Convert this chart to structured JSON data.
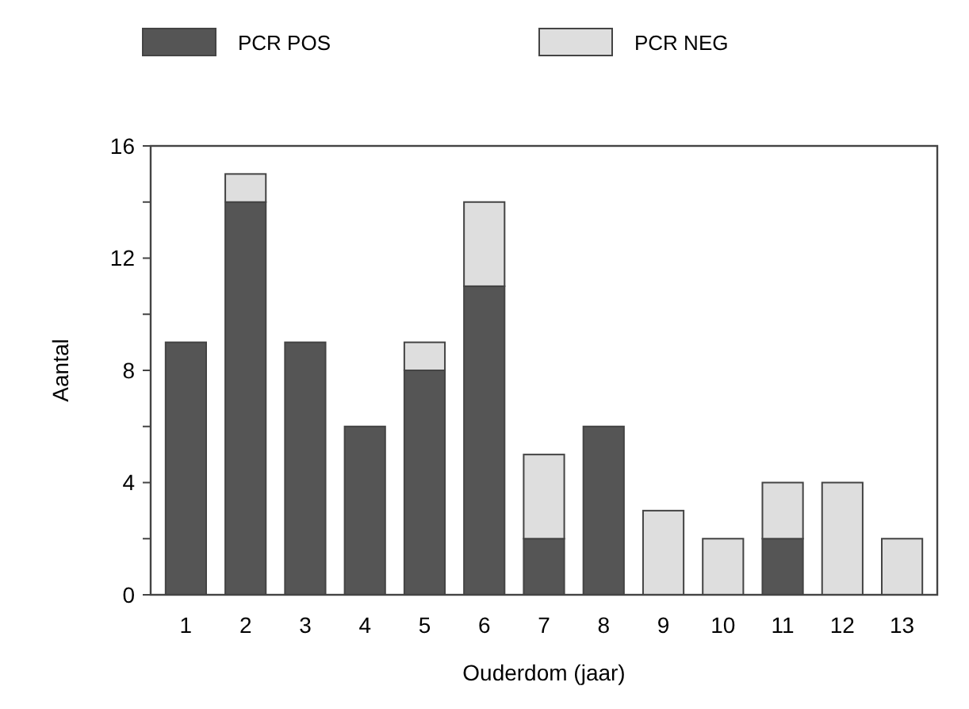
{
  "chart_data": {
    "type": "bar",
    "stacked": true,
    "xlabel": "Ouderdom (jaar)",
    "ylabel": "Aantal",
    "categories": [
      "1",
      "2",
      "3",
      "4",
      "5",
      "6",
      "7",
      "8",
      "9",
      "10",
      "11",
      "12",
      "13"
    ],
    "series": [
      {
        "name": "PCR POS",
        "color": "#555555",
        "values": [
          9,
          14,
          9,
          6,
          8,
          11,
          2,
          6,
          0,
          0,
          2,
          0,
          0
        ]
      },
      {
        "name": "PCR NEG",
        "color": "#dedede",
        "values": [
          0,
          1,
          0,
          0,
          1,
          3,
          3,
          0,
          3,
          2,
          2,
          4,
          2
        ]
      }
    ],
    "ylim": [
      0,
      16
    ],
    "yticks": [
      0,
      {
        "value": 2,
        "label": null
      },
      4,
      {
        "value": 6,
        "label": null
      },
      8,
      {
        "value": 10,
        "label": null
      },
      12,
      {
        "value": 14,
        "label": null
      },
      16
    ],
    "legend": "top",
    "grid": false
  }
}
